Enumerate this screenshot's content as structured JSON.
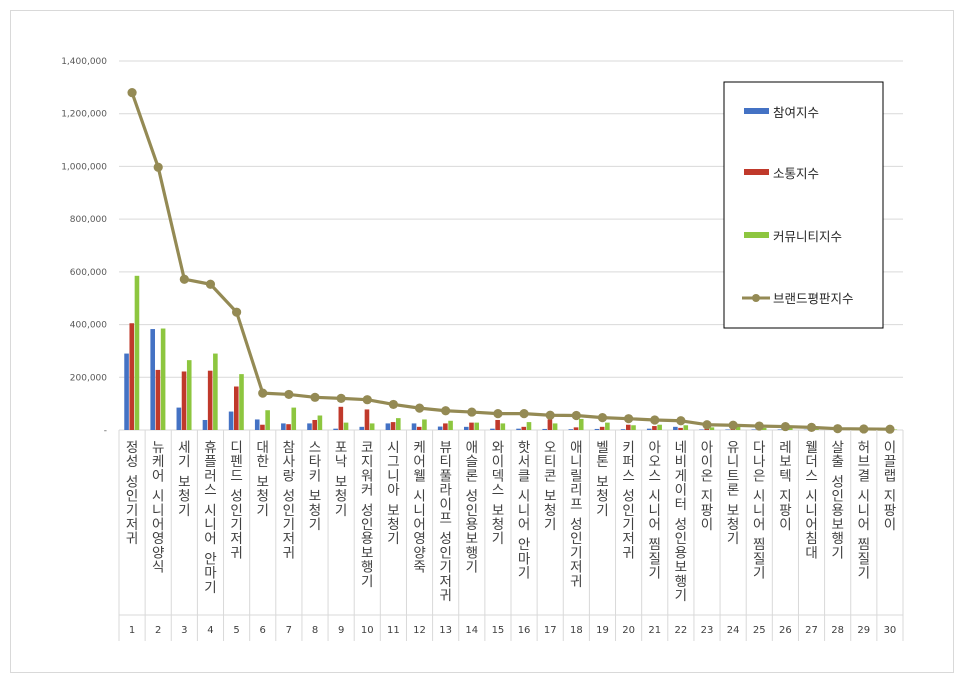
{
  "chart_data": {
    "type": "bar",
    "title": "",
    "xlabel": "",
    "ylabel": "",
    "ylim": [
      0,
      1400000
    ],
    "y_ticks": [
      "-",
      "200,000",
      "400,000",
      "600,000",
      "800,000",
      "1,000,000",
      "1,200,000",
      "1,400,000"
    ],
    "grid": true,
    "legend_position": "top-right",
    "categories": [
      "정성 성인기저귀",
      "뉴케어 시니어영양식",
      "세기 보청기",
      "휴플러스 시니어 안마기",
      "디펜드 성인기저귀",
      "대한 보청기",
      "참사랑 성인기저귀",
      "스타키 보청기",
      "포낙 보청기",
      "코지워커 성인용보행기",
      "시그니아 보청기",
      "케어웰 시니어영양죽",
      "뷰티풀라이프 성인기저귀",
      "애슬론 성인용보행기",
      "와이덱스 보청기",
      "핫서클 시니어 안마기",
      "오티콘 보청기",
      "애니릴리프 성인기저귀",
      "벨톤 보청기",
      "키퍼스 성인기저귀",
      "아오스 시니어 찜질기",
      "네비게이터 성인용보행기",
      "아이온 지팡이",
      "유니트론 보청기",
      "다나은 시니어 찜질기",
      "레보텍 지팡이",
      "웰더스 시니어침대",
      "살출 성인용보행기",
      "허브결 시니어 찜질기",
      "이끌랩 지팡이"
    ],
    "ranks": [
      "1",
      "2",
      "3",
      "4",
      "5",
      "6",
      "7",
      "8",
      "9",
      "10",
      "11",
      "12",
      "13",
      "14",
      "15",
      "16",
      "17",
      "18",
      "19",
      "20",
      "21",
      "22",
      "23",
      "24",
      "25",
      "26",
      "27",
      "28",
      "29",
      "30"
    ],
    "series": [
      {
        "name": "참여지수",
        "type": "bar",
        "color": "#4472c4",
        "values": [
          290000,
          383000,
          85000,
          38000,
          70000,
          40000,
          25000,
          25000,
          5000,
          12000,
          25000,
          25000,
          13000,
          12000,
          5000,
          5000,
          4000,
          3000,
          4000,
          3000,
          5000,
          12000,
          2000,
          2000,
          2000,
          2000,
          1000,
          1000,
          1000,
          1000
        ]
      },
      {
        "name": "소통지수",
        "type": "bar",
        "color": "#c0392b",
        "values": [
          405000,
          228000,
          222000,
          225000,
          165000,
          20000,
          22000,
          38000,
          88000,
          78000,
          30000,
          12000,
          25000,
          28000,
          38000,
          12000,
          40000,
          10000,
          12000,
          20000,
          15000,
          8000,
          5000,
          4000,
          3000,
          3000,
          2000,
          1000,
          2000,
          1000
        ]
      },
      {
        "name": "커뮤니티지수",
        "type": "bar",
        "color": "#8dc63f",
        "values": [
          585000,
          385000,
          265000,
          290000,
          212000,
          75000,
          85000,
          55000,
          28000,
          25000,
          45000,
          40000,
          35000,
          28000,
          25000,
          30000,
          25000,
          42000,
          28000,
          18000,
          20000,
          18000,
          10000,
          12000,
          8000,
          8000,
          6000,
          3000,
          2000,
          2000
        ]
      },
      {
        "name": "브랜드평판지수",
        "type": "line",
        "color": "#948a54",
        "values": [
          1280000,
          997000,
          572000,
          553000,
          447000,
          140000,
          135000,
          124000,
          120000,
          115000,
          97000,
          83000,
          73000,
          68000,
          62000,
          62000,
          56000,
          55000,
          47000,
          43000,
          38000,
          35000,
          20000,
          18000,
          15000,
          13000,
          10000,
          5000,
          4000,
          3000
        ]
      }
    ]
  }
}
